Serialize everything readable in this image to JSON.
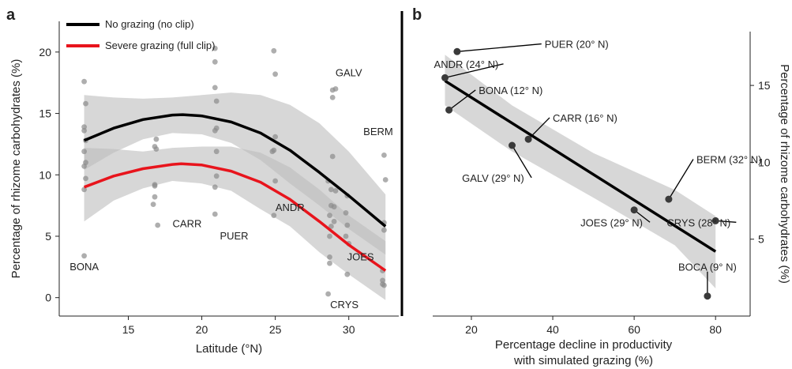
{
  "chart_data": [
    {
      "panel_label": "a",
      "type": "scatter",
      "xlabel": "Latitude (°N)",
      "ylabel": "Percentage of rhizome carbohydrates (%)",
      "xlim": [
        10.3,
        33.4
      ],
      "ylim": [
        -1.5,
        22.5
      ],
      "xticks": [
        15,
        20,
        25,
        30
      ],
      "yticks": [
        0,
        5,
        10,
        15,
        20
      ],
      "grid": false,
      "legend_position": "top-left",
      "series": [
        {
          "name": "No grazing (no clip)",
          "color": "#000000"
        },
        {
          "name": "Severe grazing (full clip)",
          "color": "#e8141c"
        }
      ],
      "fit_curves": [
        {
          "series": "No grazing (no clip)",
          "x": [
            12,
            14,
            16,
            18,
            18.7,
            20,
            22,
            24,
            26,
            28,
            30,
            32.5
          ],
          "y": [
            12.8,
            13.8,
            14.5,
            14.87,
            14.9,
            14.8,
            14.3,
            13.4,
            12.0,
            10.2,
            8.3,
            5.8
          ]
        },
        {
          "series": "Severe grazing (full clip)",
          "x": [
            12,
            14,
            16,
            18,
            18.6,
            20,
            22,
            24,
            26,
            28,
            30,
            32.5
          ],
          "y": [
            9.0,
            9.9,
            10.5,
            10.85,
            10.9,
            10.8,
            10.3,
            9.4,
            8.0,
            6.2,
            4.3,
            2.2
          ]
        }
      ],
      "confidence_bands": [
        {
          "series": "No grazing (no clip)",
          "x": [
            12,
            14,
            16,
            18,
            20,
            22,
            24,
            26,
            28,
            30,
            32.5
          ],
          "upper": [
            16.5,
            16.3,
            16.2,
            16.3,
            16.5,
            16.7,
            16.5,
            15.7,
            14.2,
            11.9,
            8.4
          ],
          "lower": [
            10.4,
            11.8,
            12.9,
            13.4,
            13.3,
            12.6,
            11.2,
            9.3,
            7.5,
            5.6,
            3.5
          ]
        },
        {
          "series": "Severe grazing (full clip)",
          "x": [
            12,
            14,
            16,
            18,
            20,
            22,
            24,
            26,
            28,
            30,
            32.5
          ],
          "upper": [
            12.2,
            12.1,
            11.9,
            12.2,
            12.3,
            12.3,
            11.8,
            10.6,
            8.8,
            6.7,
            4.6
          ],
          "lower": [
            6.2,
            7.9,
            8.9,
            9.5,
            9.3,
            8.7,
            7.2,
            5.8,
            3.7,
            1.9,
            -0.2
          ]
        }
      ],
      "points": [
        {
          "x": 12.0,
          "y": 17.6
        },
        {
          "x": 12.1,
          "y": 15.8
        },
        {
          "x": 12.0,
          "y": 13.9
        },
        {
          "x": 12.0,
          "y": 13.6
        },
        {
          "x": 12.1,
          "y": 12.8
        },
        {
          "x": 12.0,
          "y": 11.9
        },
        {
          "x": 12.1,
          "y": 11.0
        },
        {
          "x": 12.0,
          "y": 10.7
        },
        {
          "x": 12.1,
          "y": 9.7
        },
        {
          "x": 12.0,
          "y": 8.8
        },
        {
          "x": 12.0,
          "y": 3.4
        },
        {
          "x": 16.9,
          "y": 12.9
        },
        {
          "x": 16.8,
          "y": 12.3
        },
        {
          "x": 16.9,
          "y": 12.1
        },
        {
          "x": 16.8,
          "y": 9.2
        },
        {
          "x": 16.8,
          "y": 9.1
        },
        {
          "x": 16.8,
          "y": 8.2
        },
        {
          "x": 16.7,
          "y": 7.6
        },
        {
          "x": 17.0,
          "y": 5.9
        },
        {
          "x": 20.9,
          "y": 20.3
        },
        {
          "x": 20.9,
          "y": 19.2
        },
        {
          "x": 20.9,
          "y": 17.1
        },
        {
          "x": 21.0,
          "y": 16.0
        },
        {
          "x": 21.0,
          "y": 13.8
        },
        {
          "x": 20.9,
          "y": 13.6
        },
        {
          "x": 21.0,
          "y": 11.9
        },
        {
          "x": 21.0,
          "y": 9.9
        },
        {
          "x": 20.9,
          "y": 9.0
        },
        {
          "x": 20.9,
          "y": 6.8
        },
        {
          "x": 24.9,
          "y": 20.1
        },
        {
          "x": 25.0,
          "y": 18.2
        },
        {
          "x": 25.0,
          "y": 13.1
        },
        {
          "x": 24.9,
          "y": 12.0
        },
        {
          "x": 24.8,
          "y": 11.9
        },
        {
          "x": 25.0,
          "y": 9.5
        },
        {
          "x": 24.9,
          "y": 6.7
        },
        {
          "x": 28.9,
          "y": 16.9
        },
        {
          "x": 29.1,
          "y": 17.0
        },
        {
          "x": 28.9,
          "y": 16.3
        },
        {
          "x": 28.9,
          "y": 11.5
        },
        {
          "x": 28.6,
          "y": 9.5
        },
        {
          "x": 28.8,
          "y": 8.8
        },
        {
          "x": 29.1,
          "y": 8.7
        },
        {
          "x": 28.8,
          "y": 7.5
        },
        {
          "x": 29.0,
          "y": 7.4
        },
        {
          "x": 28.7,
          "y": 6.7
        },
        {
          "x": 29.0,
          "y": 6.2
        },
        {
          "x": 28.8,
          "y": 5.8
        },
        {
          "x": 28.7,
          "y": 5.0
        },
        {
          "x": 28.7,
          "y": 3.3
        },
        {
          "x": 28.7,
          "y": 2.8
        },
        {
          "x": 28.6,
          "y": 0.3
        },
        {
          "x": 29.9,
          "y": 8.3
        },
        {
          "x": 29.8,
          "y": 6.9
        },
        {
          "x": 29.9,
          "y": 5.9
        },
        {
          "x": 29.8,
          "y": 5.0
        },
        {
          "x": 30.0,
          "y": 4.4
        },
        {
          "x": 29.9,
          "y": 1.9
        },
        {
          "x": 32.4,
          "y": 11.6
        },
        {
          "x": 32.5,
          "y": 9.6
        },
        {
          "x": 32.4,
          "y": 6.1
        },
        {
          "x": 32.4,
          "y": 5.5
        },
        {
          "x": 32.3,
          "y": 2.2
        },
        {
          "x": 32.3,
          "y": 1.4
        },
        {
          "x": 32.4,
          "y": 1.0
        },
        {
          "x": 32.3,
          "y": 1.1
        }
      ],
      "annotations": [
        {
          "text": "BONA",
          "x": 12.0,
          "y": 2.5
        },
        {
          "text": "CARR",
          "x": 19.0,
          "y": 6.0
        },
        {
          "text": "PUER",
          "x": 22.2,
          "y": 5.0
        },
        {
          "text": "ANDR",
          "x": 26.0,
          "y": 7.3
        },
        {
          "text": "GALV",
          "x": 30.0,
          "y": 18.3
        },
        {
          "text": "BERM",
          "x": 32.0,
          "y": 13.5
        },
        {
          "text": "JOES",
          "x": 30.8,
          "y": 3.3
        },
        {
          "text": "CRYS",
          "x": 29.7,
          "y": -0.6
        }
      ]
    },
    {
      "panel_label": "b",
      "type": "scatter",
      "xlabel": "Percentage decline in productivity with simulated grazing (%)",
      "xlabel_lines": [
        "Percentage decline in productivity",
        "with simulated grazing (%)"
      ],
      "ylabel": "Percentage of rhizome carbohydrates (%)",
      "yaxis_side": "right",
      "xlim": [
        10.5,
        88.5
      ],
      "ylim": [
        0,
        18.5
      ],
      "xticks": [
        20,
        40,
        60,
        80
      ],
      "yticks": [
        5,
        10,
        15
      ],
      "grid": false,
      "fit_line": {
        "x": [
          13.5,
          80
        ],
        "y": [
          15.3,
          4.2
        ]
      },
      "confidence_band": {
        "x": [
          13.5,
          30,
          50,
          70,
          80
        ],
        "upper": [
          17.0,
          13.7,
          10.6,
          8.2,
          6.5
        ],
        "lower": [
          13.7,
          10.7,
          7.7,
          4.6,
          1.8
        ]
      },
      "points": [
        {
          "label": "PUER (20° N)",
          "x": 16.5,
          "y": 17.2,
          "text_x": 38,
          "text_y": 17.7
        },
        {
          "label": "ANDR (24° N)",
          "x": 13.5,
          "y": 15.5,
          "text_x": 10.8,
          "text_y": 16.4
        },
        {
          "label": "BONA (12° N)",
          "x": 14.5,
          "y": 13.4,
          "text_x": 21.8,
          "text_y": 14.7
        },
        {
          "label": "CARR (16° N)",
          "x": 34.0,
          "y": 11.5,
          "text_x": 40,
          "text_y": 12.9
        },
        {
          "label": "GALV (29° N)",
          "x": 30.0,
          "y": 11.1,
          "text_x": 17.7,
          "text_y": 9.0
        },
        {
          "label": "BERM (32° N)",
          "x": 68.5,
          "y": 7.6,
          "text_x": 75.3,
          "text_y": 10.2
        },
        {
          "label": "JOES (29° N)",
          "x": 60.0,
          "y": 6.9,
          "text_x": 46.8,
          "text_y": 6.1
        },
        {
          "label": "CRYS (28° N)",
          "x": 80.0,
          "y": 6.2,
          "text_x": 68,
          "text_y": 6.1
        },
        {
          "label": "BOCA (9° N)",
          "x": 78.0,
          "y": 1.3,
          "text_x": 78,
          "text_y": 3.2
        }
      ]
    }
  ]
}
